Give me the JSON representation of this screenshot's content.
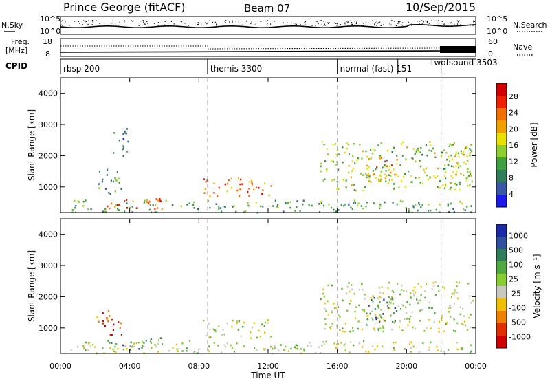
{
  "header": {
    "station": "Prince George (fitACF)",
    "beam": "Beam 07",
    "date": "10/Sep/2015"
  },
  "top_panels": {
    "nsky_label": "N.Sky",
    "nsky_ticks": [
      "10^5",
      "10^0"
    ],
    "nsearch_label": "N.Search",
    "nsearch_ticks": [
      "10^5",
      "10^0"
    ],
    "freq_label_line1": "Freq.",
    "freq_label_line2": "[MHz]",
    "freq_ticks": [
      "18",
      "8"
    ],
    "nave_label": "Nave",
    "nave_ticks": [
      "60",
      "0"
    ],
    "cpid_label": "CPID"
  },
  "chart_data": [
    {
      "type": "table",
      "title": "CPID",
      "segments": [
        {
          "label": "rbsp 200",
          "start_h": 0.0,
          "end_h": 8.5
        },
        {
          "label": "themis 3300",
          "start_h": 8.5,
          "end_h": 16.0
        },
        {
          "label": "normal (fast) 151",
          "start_h": 16.0,
          "end_h": 22.0
        },
        {
          "label": "twofsound 3503",
          "start_h": 19.5,
          "end_h": 22.0
        }
      ]
    },
    {
      "type": "heatmap",
      "title": "",
      "xlabel": "Time UT",
      "ylabel": "Slant Range [km]",
      "xlim": [
        0,
        24
      ],
      "ylim": [
        180,
        4500
      ],
      "x_ticks": [
        "00:00",
        "04:00",
        "08:00",
        "12:00",
        "16:00",
        "20:00",
        "00:00"
      ],
      "y_ticks": [
        "1000",
        "2000",
        "3000",
        "4000"
      ],
      "colorbar_label": "Power [dB]",
      "colorbar_ticks": [
        "28",
        "24",
        "20",
        "16",
        "12",
        "8",
        "4"
      ],
      "colorbar_colors": [
        "#d40000",
        "#ee2200",
        "#f07000",
        "#f0a000",
        "#e8e000",
        "#8ccf2e",
        "#3fa03f",
        "#2f7d5a",
        "#3a58a8",
        "#1a1aee"
      ],
      "echo_regions": [
        {
          "t0": 0.5,
          "t1": 23.8,
          "r0": 200,
          "r1": 600,
          "level": 0.35
        },
        {
          "t0": 2.5,
          "t1": 6.0,
          "r0": 300,
          "r1": 700,
          "level": 0.8
        },
        {
          "t0": 8.2,
          "t1": 12.2,
          "r0": 700,
          "r1": 1300,
          "level": 0.75
        },
        {
          "t0": 2.0,
          "t1": 3.5,
          "r0": 800,
          "r1": 1600,
          "level": 0.3
        },
        {
          "t0": 3.0,
          "t1": 4.0,
          "r0": 2000,
          "r1": 2900,
          "level": 0.25
        },
        {
          "t0": 15.0,
          "t1": 23.8,
          "r0": 900,
          "r1": 2500,
          "level": 0.45
        },
        {
          "t0": 17.5,
          "t1": 19.5,
          "r0": 1200,
          "r1": 2000,
          "level": 0.65
        },
        {
          "t0": 22.5,
          "t1": 23.8,
          "r0": 1300,
          "r1": 2200,
          "level": 0.55
        }
      ]
    },
    {
      "type": "heatmap",
      "title": "",
      "xlabel": "Time UT",
      "ylabel": "Slant Range [km]",
      "xlim": [
        0,
        24
      ],
      "ylim": [
        180,
        4500
      ],
      "x_ticks": [
        "00:00",
        "04:00",
        "08:00",
        "12:00",
        "16:00",
        "20:00",
        "00:00"
      ],
      "y_ticks": [
        "1000",
        "2000",
        "3000",
        "4000"
      ],
      "colorbar_label": "Velocity [m s⁻¹]",
      "colorbar_ticks": [
        "1000",
        "500",
        "100",
        "25",
        "-25",
        "-100",
        "-500",
        "-1000"
      ],
      "colorbar_colors": [
        "#1a2aa8",
        "#2f50a0",
        "#2f7d5a",
        "#4faa3f",
        "#88cc33",
        "#c8c8c0",
        "#f0c000",
        "#f08000",
        "#e03000",
        "#d00000"
      ],
      "echo_regions": [
        {
          "t0": 0.5,
          "t1": 23.8,
          "r0": 200,
          "r1": 600,
          "level": 0.5
        },
        {
          "t0": 2.5,
          "t1": 6.0,
          "r0": 300,
          "r1": 700,
          "level": 0.35
        },
        {
          "t0": 8.2,
          "t1": 12.2,
          "r0": 700,
          "r1": 1300,
          "level": 0.5
        },
        {
          "t0": 2.0,
          "t1": 3.5,
          "r0": 800,
          "r1": 1600,
          "level": 0.85
        },
        {
          "t0": 15.0,
          "t1": 23.8,
          "r0": 900,
          "r1": 2500,
          "level": 0.5
        },
        {
          "t0": 17.5,
          "t1": 19.5,
          "r0": 1200,
          "r1": 2000,
          "level": 0.2
        }
      ]
    }
  ]
}
